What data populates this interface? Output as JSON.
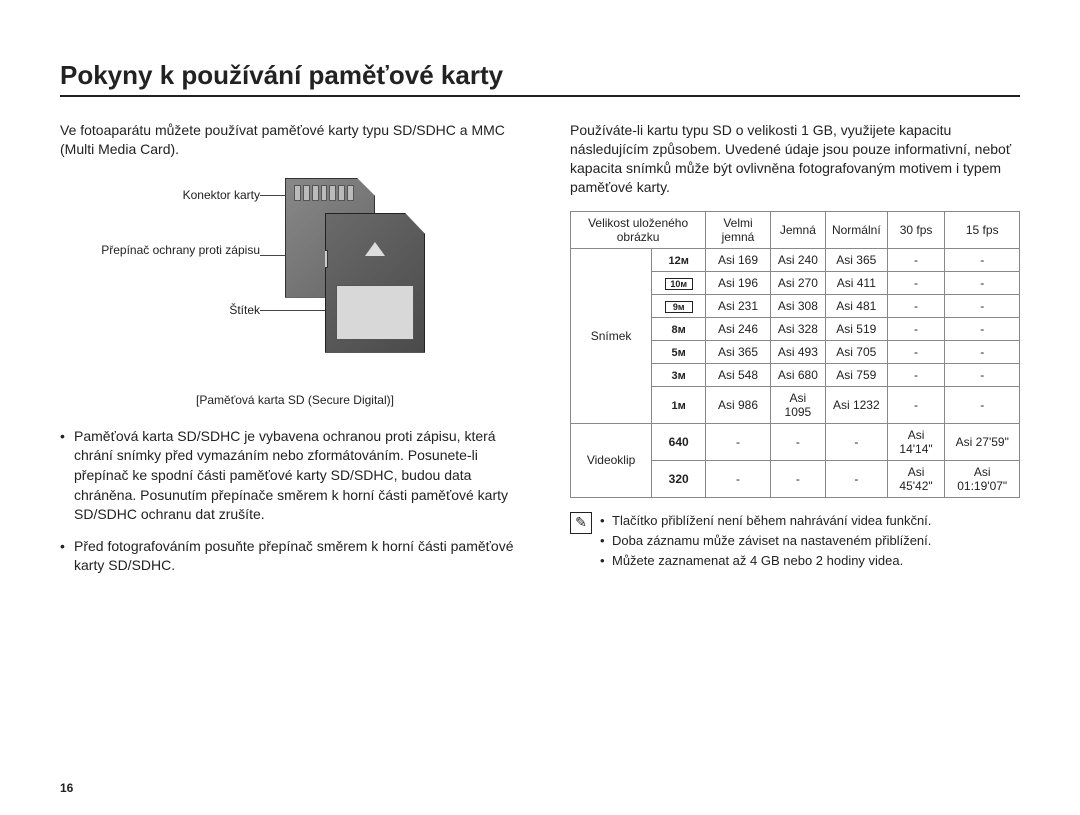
{
  "title": "Pokyny k používání paměťové karty",
  "page_number": "16",
  "left": {
    "intro": "Ve fotoaparátu můžete používat paměťové karty typu SD/SDHC a MMC (Multi Media Card).",
    "labels": {
      "connector": "Konektor karty",
      "write_protect": "Přepínač ochrany proti zápisu",
      "sticker": "Štítek"
    },
    "caption": "[Paměťová karta SD (Secure Digital)]",
    "bullet1": "Paměťová karta SD/SDHC je vybavena ochranou proti zápisu, která chrání snímky před vymazáním nebo zformátováním. Posunete-li přepínač ke spodní části paměťové karty SD/SDHC, budou data chráněna. Posunutím přepínače směrem k horní části paměťové karty SD/SDHC ochranu dat zrušíte.",
    "bullet2": "Před fotografováním posuňte přepínač směrem k horní části paměťové karty SD/SDHC."
  },
  "right": {
    "intro": "Používáte-li kartu typu SD o velikosti 1 GB, využijete kapacitu následujícím způsobem. Uvedené údaje jsou pouze informativní, neboť kapacita snímků může být ovlivněna fotografovaným motivem i typem paměťové karty.",
    "headers": {
      "size": "Velikost uloženého obrázku",
      "very_fine": "Velmi jemná",
      "fine": "Jemná",
      "normal": "Normální",
      "fps30": "30 fps",
      "fps15": "15 fps"
    },
    "row_labels": {
      "image": "Snímek",
      "video": "Videoklip"
    },
    "sizes": [
      "12ᴍ",
      "10ᴍ",
      "9ᴍ",
      "8ᴍ",
      "5ᴍ",
      "3ᴍ",
      "1ᴍ"
    ],
    "video_sizes": [
      "640",
      "320"
    ],
    "image_rows": [
      [
        "Asi 169",
        "Asi 240",
        "Asi 365",
        "-",
        "-"
      ],
      [
        "Asi 196",
        "Asi 270",
        "Asi 411",
        "-",
        "-"
      ],
      [
        "Asi 231",
        "Asi 308",
        "Asi 481",
        "-",
        "-"
      ],
      [
        "Asi 246",
        "Asi 328",
        "Asi 519",
        "-",
        "-"
      ],
      [
        "Asi 365",
        "Asi 493",
        "Asi 705",
        "-",
        "-"
      ],
      [
        "Asi 548",
        "Asi 680",
        "Asi 759",
        "-",
        "-"
      ],
      [
        "Asi 986",
        "Asi 1095",
        "Asi 1232",
        "-",
        "-"
      ]
    ],
    "video_rows": [
      [
        "-",
        "-",
        "-",
        "Asi 14'14\"",
        "Asi 27'59\""
      ],
      [
        "-",
        "-",
        "-",
        "Asi 45'42\"",
        "Asi 01:19'07\""
      ]
    ],
    "notes": [
      "Tlačítko přiblížení není během nahrávání videa funkční.",
      "Doba záznamu může záviset na nastaveném přiblížení.",
      "Můžete zaznamenat až 4 GB nebo 2 hodiny videa."
    ]
  }
}
